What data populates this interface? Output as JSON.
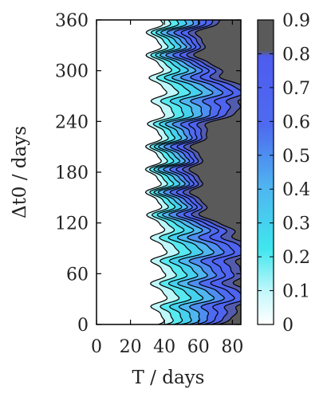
{
  "chart_data": {
    "type": "heatmap",
    "subtype": "filled-contour",
    "xlabel": "T / days",
    "ylabel": "Δt0 / days",
    "xlim": [
      0,
      85
    ],
    "ylim": [
      0,
      360
    ],
    "xticks": [
      0,
      20,
      40,
      60,
      80
    ],
    "yticks": [
      0,
      60,
      120,
      180,
      240,
      300,
      360
    ],
    "colorbar": {
      "range": [
        0,
        0.9
      ],
      "ticks": [
        0,
        0.1,
        0.2,
        0.3,
        0.4,
        0.5,
        0.6,
        0.7,
        0.8,
        0.9
      ],
      "colors": [
        "#ffffff",
        "#3fe6ee",
        "#4e5cf0",
        "#5a5a5a"
      ]
    },
    "z_left_of_T": {
      "T": 25,
      "value": 0
    },
    "z_right_of_T": {
      "T": 82,
      "value": 0.9
    },
    "description_values": {
      "oscillation_period_dt0_days": 27,
      "transition_center_T_days": 43,
      "broad_low_bands_dt0_days": [
        30,
        90,
        270
      ]
    }
  }
}
